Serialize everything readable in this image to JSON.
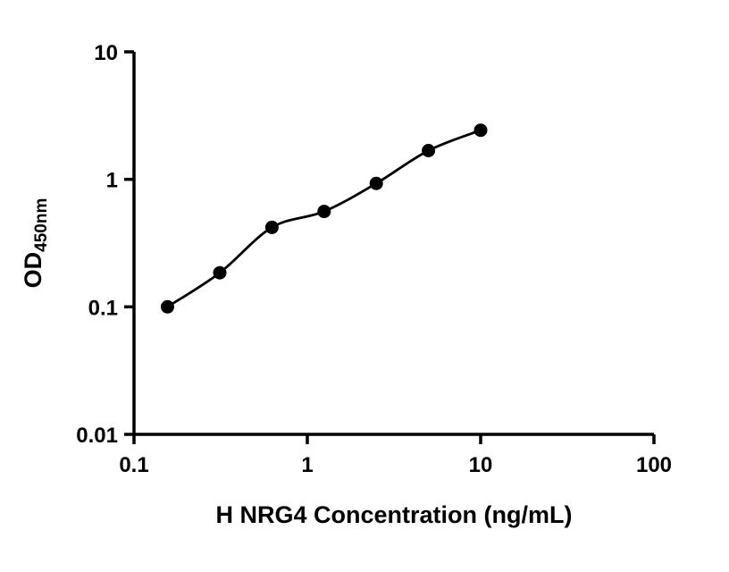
{
  "chart_data": {
    "type": "scatter",
    "title": "",
    "xlabel": "H NRG4 Concentration (ng/mL)",
    "ylabel_main": "OD",
    "ylabel_sub": "450nm",
    "x_scale": "log",
    "y_scale": "log",
    "xlim": [
      0.1,
      100
    ],
    "ylim": [
      0.01,
      10
    ],
    "grid": "off",
    "legend": "none",
    "x_ticks": [
      {
        "value": 0.1,
        "label": "0.1"
      },
      {
        "value": 1,
        "label": "1"
      },
      {
        "value": 10,
        "label": "10"
      },
      {
        "value": 100,
        "label": "100"
      }
    ],
    "y_ticks": [
      {
        "value": 0.01,
        "label": "0.01"
      },
      {
        "value": 0.1,
        "label": "0.1"
      },
      {
        "value": 1,
        "label": "1"
      },
      {
        "value": 10,
        "label": "10"
      }
    ],
    "series": [
      {
        "marker": "filled-circle",
        "line": "smooth",
        "color": "#000000",
        "points": [
          {
            "x": 0.156,
            "y": 0.1
          },
          {
            "x": 0.3125,
            "y": 0.185
          },
          {
            "x": 0.625,
            "y": 0.42
          },
          {
            "x": 1.25,
            "y": 0.56
          },
          {
            "x": 2.5,
            "y": 0.93
          },
          {
            "x": 5,
            "y": 1.68
          },
          {
            "x": 10,
            "y": 2.43
          }
        ]
      }
    ],
    "colors": {
      "axis": "#000000",
      "marker": "#000000",
      "curve": "#000000",
      "background": "#ffffff"
    }
  }
}
